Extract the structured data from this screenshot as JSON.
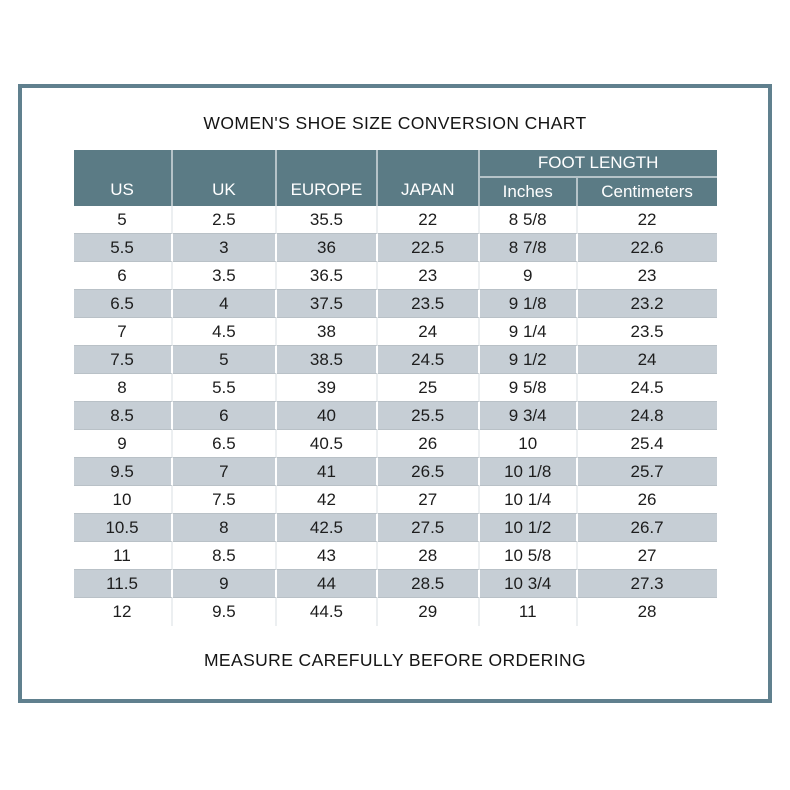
{
  "title": "WOMEN'S SHOE SIZE CONVERSION CHART",
  "footer": "MEASURE CAREFULLY BEFORE ORDERING",
  "colors": {
    "frame_border": "#60808e",
    "header_bg": "#5b7b85",
    "header_text": "#ffffff",
    "row_alt_bg": "#c6ced5",
    "body_text": "#1d1d1d"
  },
  "chart_data": {
    "type": "table",
    "title": "WOMEN'S SHOE SIZE CONVERSION CHART",
    "footnote": "MEASURE CAREFULLY BEFORE ORDERING",
    "column_group": {
      "label": "FOOT LENGTH",
      "spans_columns": [
        "Inches",
        "Centimeters"
      ]
    },
    "columns": [
      "US",
      "UK",
      "EUROPE",
      "JAPAN",
      "Inches",
      "Centimeters"
    ],
    "rows": [
      [
        "5",
        "2.5",
        "35.5",
        "22",
        "8 5/8",
        "22"
      ],
      [
        "5.5",
        "3",
        "36",
        "22.5",
        "8 7/8",
        "22.6"
      ],
      [
        "6",
        "3.5",
        "36.5",
        "23",
        "9",
        "23"
      ],
      [
        "6.5",
        "4",
        "37.5",
        "23.5",
        "9 1/8",
        "23.2"
      ],
      [
        "7",
        "4.5",
        "38",
        "24",
        "9 1/4",
        "23.5"
      ],
      [
        "7.5",
        "5",
        "38.5",
        "24.5",
        "9 1/2",
        "24"
      ],
      [
        "8",
        "5.5",
        "39",
        "25",
        "9 5/8",
        "24.5"
      ],
      [
        "8.5",
        "6",
        "40",
        "25.5",
        "9 3/4",
        "24.8"
      ],
      [
        "9",
        "6.5",
        "40.5",
        "26",
        "10",
        "25.4"
      ],
      [
        "9.5",
        "7",
        "41",
        "26.5",
        "10 1/8",
        "25.7"
      ],
      [
        "10",
        "7.5",
        "42",
        "27",
        "10 1/4",
        "26"
      ],
      [
        "10.5",
        "8",
        "42.5",
        "27.5",
        "10 1/2",
        "26.7"
      ],
      [
        "11",
        "8.5",
        "43",
        "28",
        "10 5/8",
        "27"
      ],
      [
        "11.5",
        "9",
        "44",
        "28.5",
        "10 3/4",
        "27.3"
      ],
      [
        "12",
        "9.5",
        "44.5",
        "29",
        "11",
        "28"
      ]
    ]
  }
}
